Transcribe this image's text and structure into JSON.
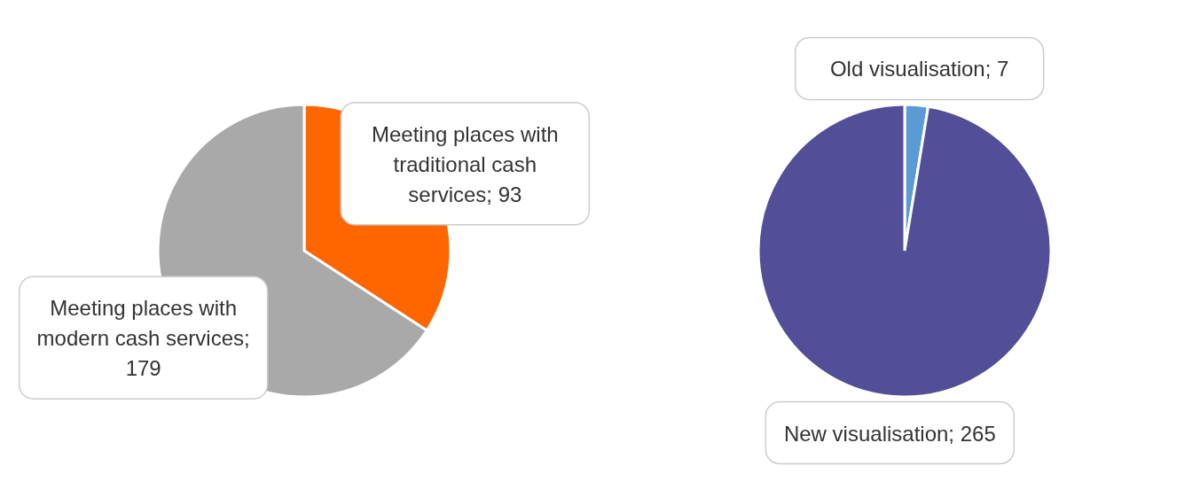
{
  "chart_data": [
    {
      "type": "pie",
      "categories": [
        "Meeting places with traditional cash services; 93",
        "Meeting places with modern cash services; 179"
      ],
      "values": [
        93,
        179
      ],
      "colors": [
        "#ff6600",
        "#a9a9a9"
      ]
    },
    {
      "type": "pie",
      "categories": [
        "Old visualisation; 7",
        "New visualisation; 265"
      ],
      "values": [
        7,
        265
      ],
      "colors": [
        "#5b9bd5",
        "#524f98"
      ]
    }
  ]
}
